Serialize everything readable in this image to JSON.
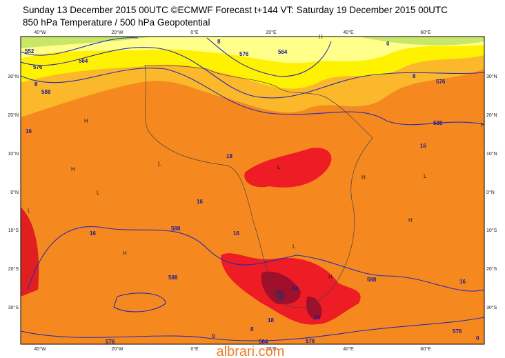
{
  "header": {
    "line1": "Sunday 13 December 2015 00UTC ©ECMWF Forecast t+144 VT: Saturday 19 December 2015 00UTC",
    "line2": "850 hPa Temperature / 500 hPa Geopotential"
  },
  "map": {
    "longitude_labels": [
      "40°W",
      "20°W",
      "0°E",
      "20°E",
      "40°E",
      "60°E"
    ],
    "latitude_labels": [
      "30°N",
      "20°N",
      "10°N",
      "0°N",
      "10°S",
      "20°S",
      "30°S"
    ],
    "contour_labels": [
      "552",
      "564",
      "576",
      "588",
      "8",
      "16",
      "8",
      "576",
      "564",
      "0",
      "8",
      "576",
      "588",
      "16",
      "18",
      "16",
      "16",
      "16",
      "588",
      "588",
      "16",
      "588",
      "24",
      "24",
      "18",
      "8",
      "0",
      "576",
      "564",
      "576",
      "576",
      "0"
    ],
    "pressure_markers": [
      "H",
      "H",
      "L",
      "H",
      "L",
      "H",
      "L",
      "H",
      "H",
      "L",
      "H",
      "L",
      "H",
      "L"
    ]
  },
  "watermark": "albrari.com"
}
